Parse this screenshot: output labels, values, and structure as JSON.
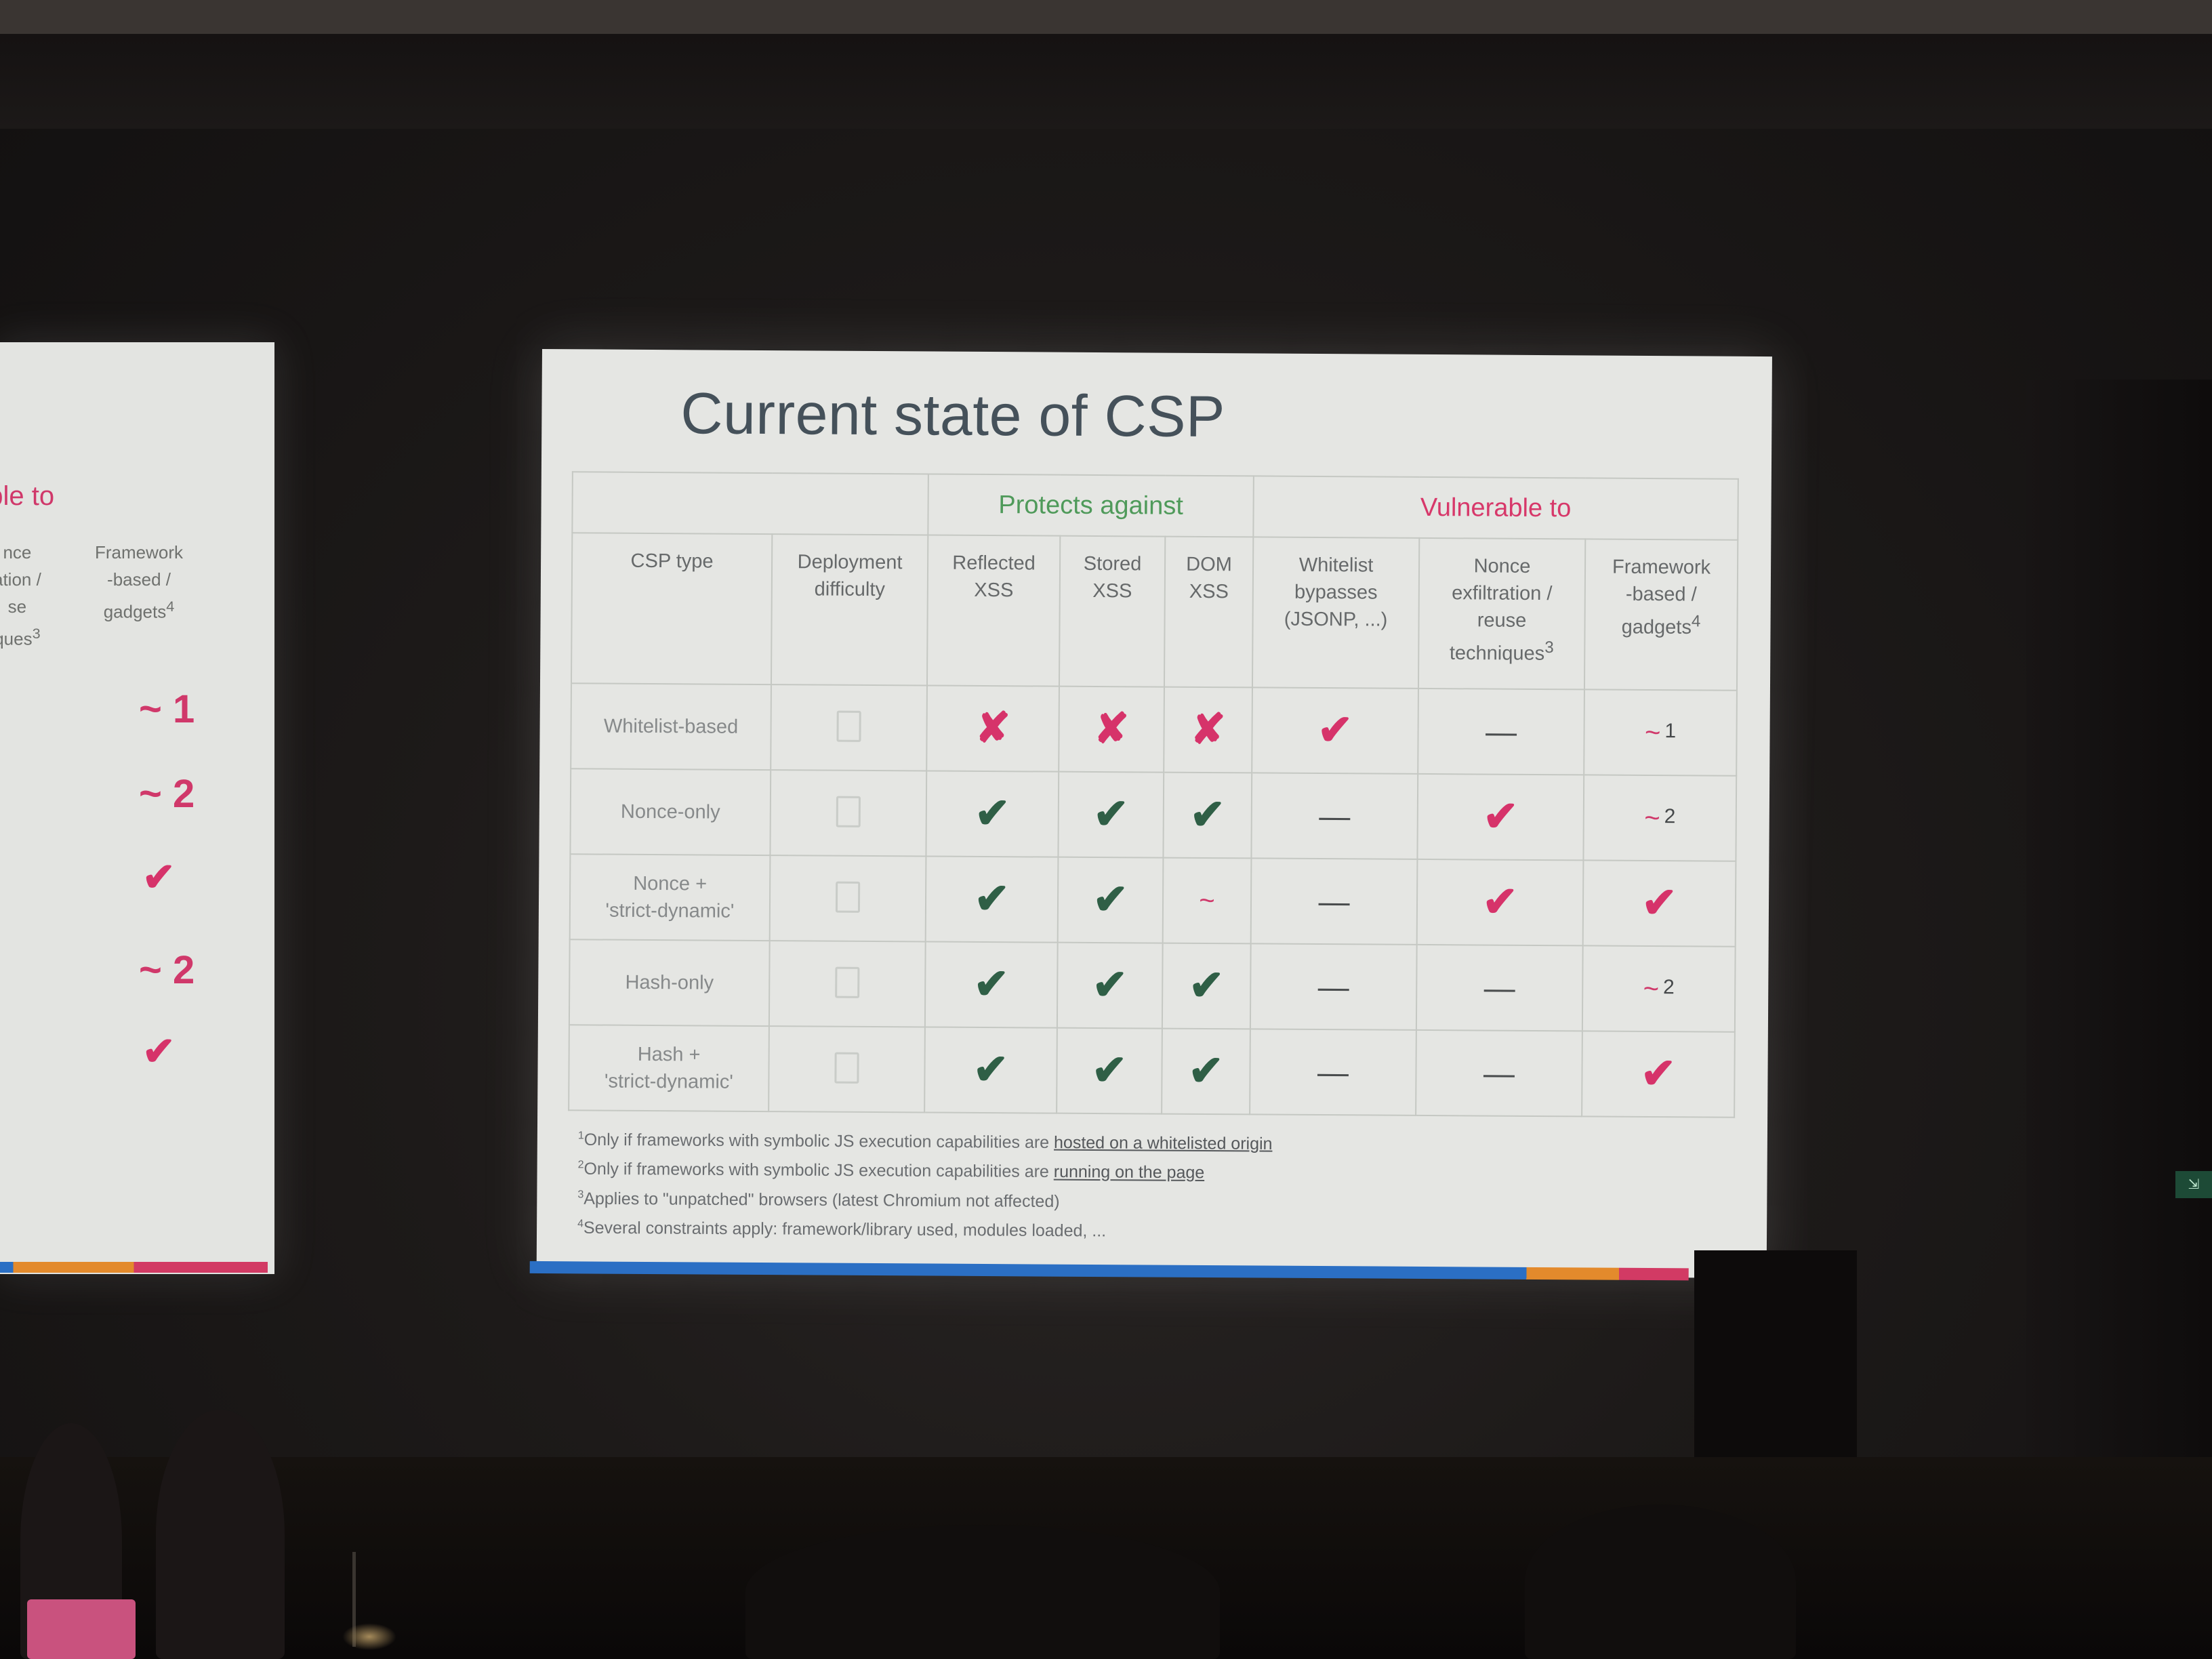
{
  "slide": {
    "title": "Current state of CSP",
    "groups": {
      "protects": "Protects against",
      "vulnerable": "Vulnerable to"
    },
    "columns": {
      "csp_type": "CSP type",
      "deployment": [
        "Deployment",
        "difficulty"
      ],
      "reflected": [
        "Reflected",
        "XSS"
      ],
      "stored": [
        "Stored",
        "XSS"
      ],
      "dom": [
        "DOM",
        "XSS"
      ],
      "whitelist": [
        "Whitelist",
        "bypasses",
        "(JSONP, ...)"
      ],
      "nonce": [
        "Nonce",
        "exfiltration /",
        "reuse",
        "techniques"
      ],
      "nonce_sup": "3",
      "framework": [
        "Framework",
        "-based /",
        "gadgets"
      ],
      "framework_sup": "4"
    },
    "rows": [
      {
        "label": [
          "Whitelist-based"
        ],
        "reflected": "cross",
        "stored": "cross",
        "dom": "cross",
        "whitelist": "vuln",
        "nonce": "dash",
        "framework": "partial",
        "framework_note": "1"
      },
      {
        "label": [
          "Nonce-only"
        ],
        "reflected": "check",
        "stored": "check",
        "dom": "check",
        "whitelist": "dash",
        "nonce": "vuln",
        "framework": "partial",
        "framework_note": "2"
      },
      {
        "label": [
          "Nonce +",
          "'strict-dynamic'"
        ],
        "reflected": "check",
        "stored": "check",
        "dom": "partial",
        "whitelist": "dash",
        "nonce": "vuln",
        "framework": "vuln",
        "framework_note": ""
      },
      {
        "label": [
          "Hash-only"
        ],
        "reflected": "check",
        "stored": "check",
        "dom": "check",
        "whitelist": "dash",
        "nonce": "dash",
        "framework": "partial",
        "framework_note": "2"
      },
      {
        "label": [
          "Hash +",
          "'strict-dynamic'"
        ],
        "reflected": "check",
        "stored": "check",
        "dom": "check",
        "whitelist": "dash",
        "nonce": "dash",
        "framework": "vuln",
        "framework_note": ""
      }
    ],
    "symbols": {
      "check": "✔",
      "cross": "✘",
      "dash": "—",
      "partial": "~",
      "checkbox": "checkbox-icon"
    },
    "footnotes": [
      {
        "num": "1",
        "text": "Only if frameworks with symbolic JS execution capabilities are ",
        "link": "hosted on a whitelisted origin"
      },
      {
        "num": "2",
        "text": "Only if frameworks with symbolic JS execution capabilities are ",
        "link": "running on the page"
      },
      {
        "num": "3",
        "text": "Applies to \"unpatched\" browsers (latest Chromium not affected)",
        "link": ""
      },
      {
        "num": "4",
        "text": "Several constraints apply: framework/library used, modules loaded, ...",
        "link": ""
      }
    ],
    "colors": {
      "protect_green": "#4f9a5a",
      "vuln_pink": "#d6336a",
      "check_dark_green": "#2f5f46",
      "slide_bg": "#e5e6e3"
    }
  },
  "left_slide": {
    "heading_fragment": "able to",
    "col1_fragment": [
      "nce",
      "ation /",
      "se",
      "ques"
    ],
    "col1_sup": "3",
    "col2": [
      "Framework",
      "-based /",
      "gadgets"
    ],
    "col2_sup": "4",
    "marks": [
      "~ 1",
      "~ 2",
      "✔",
      "~ 2",
      "✔"
    ]
  }
}
